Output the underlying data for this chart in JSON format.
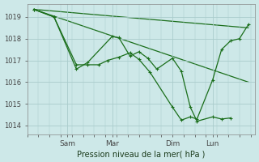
{
  "background_color": "#cde8e8",
  "grid_color": "#aacccc",
  "line_color": "#1a6e1a",
  "ylabel": "Pression niveau de la mer( hPa )",
  "ylim": [
    1013.6,
    1019.6
  ],
  "yticks": [
    1014,
    1015,
    1016,
    1017,
    1018,
    1019
  ],
  "xtick_labels": [
    "Sam",
    "Mar",
    "Dim",
    "Lun"
  ],
  "xtick_positions": [
    0.18,
    0.38,
    0.65,
    0.83
  ],
  "series1_x": [
    0.03,
    0.12,
    0.22,
    0.27,
    0.38,
    0.41,
    0.46,
    0.5,
    0.54,
    0.58,
    0.65,
    0.69,
    0.73,
    0.76,
    0.83,
    0.87,
    0.91
  ],
  "series1_y": [
    1019.35,
    1019.0,
    1016.6,
    1016.9,
    1018.1,
    1018.05,
    1017.2,
    1017.4,
    1017.1,
    1016.6,
    1017.1,
    1016.5,
    1014.85,
    1014.2,
    1014.4,
    1014.3,
    1014.35
  ],
  "series2_x": [
    0.03,
    0.12,
    0.22,
    0.27,
    0.32,
    0.36,
    0.41,
    0.46,
    0.5,
    0.55,
    0.65,
    0.69,
    0.73,
    0.76,
    0.83,
    0.87,
    0.91,
    0.95,
    0.99
  ],
  "series2_y": [
    1019.35,
    1019.0,
    1016.8,
    1016.8,
    1016.8,
    1017.0,
    1017.15,
    1017.35,
    1017.05,
    1016.45,
    1014.85,
    1014.25,
    1014.4,
    1014.3,
    1016.1,
    1017.5,
    1017.9,
    1018.0,
    1018.65
  ],
  "trend1_x": [
    0.03,
    0.99
  ],
  "trend1_y": [
    1019.35,
    1018.5
  ],
  "trend2_x": [
    0.03,
    0.99
  ],
  "trend2_y": [
    1019.35,
    1016.0
  ],
  "xlim": [
    0.0,
    1.02
  ]
}
